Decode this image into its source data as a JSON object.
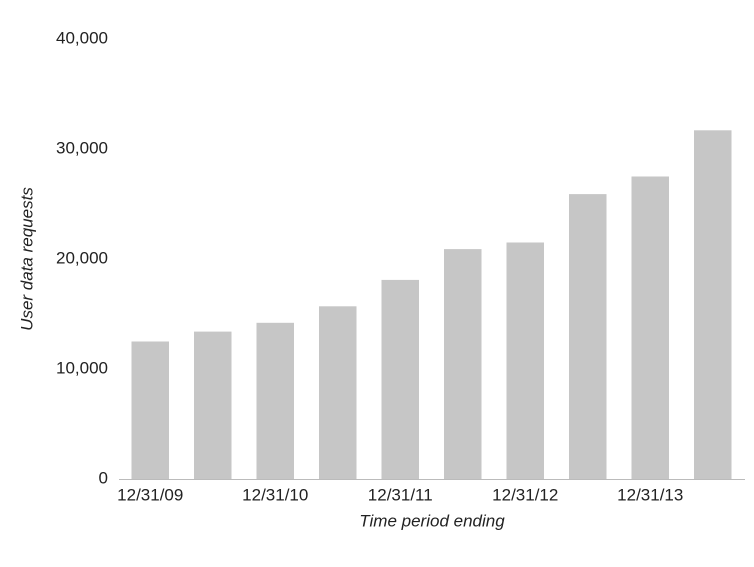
{
  "chart_data": {
    "type": "bar",
    "x_label": "Time period ending",
    "y_label": "User data requests",
    "categories": [
      "12/31/09",
      null,
      "12/31/10",
      null,
      "12/31/11",
      null,
      "12/31/12",
      null,
      "12/31/13",
      null
    ],
    "values": [
      12500,
      13400,
      14200,
      15700,
      18100,
      20900,
      21500,
      25900,
      27500,
      31700
    ],
    "color": "#c6c6c6",
    "ylim": [
      0,
      40000
    ],
    "yticks": [
      0,
      {
        "value": 10000,
        "label": "10,000"
      },
      {
        "value": 20000,
        "label": "20,000"
      },
      {
        "value": 30000,
        "label": "30,000"
      },
      {
        "value": 40000,
        "label": "40,000"
      }
    ],
    "grid": false
  }
}
